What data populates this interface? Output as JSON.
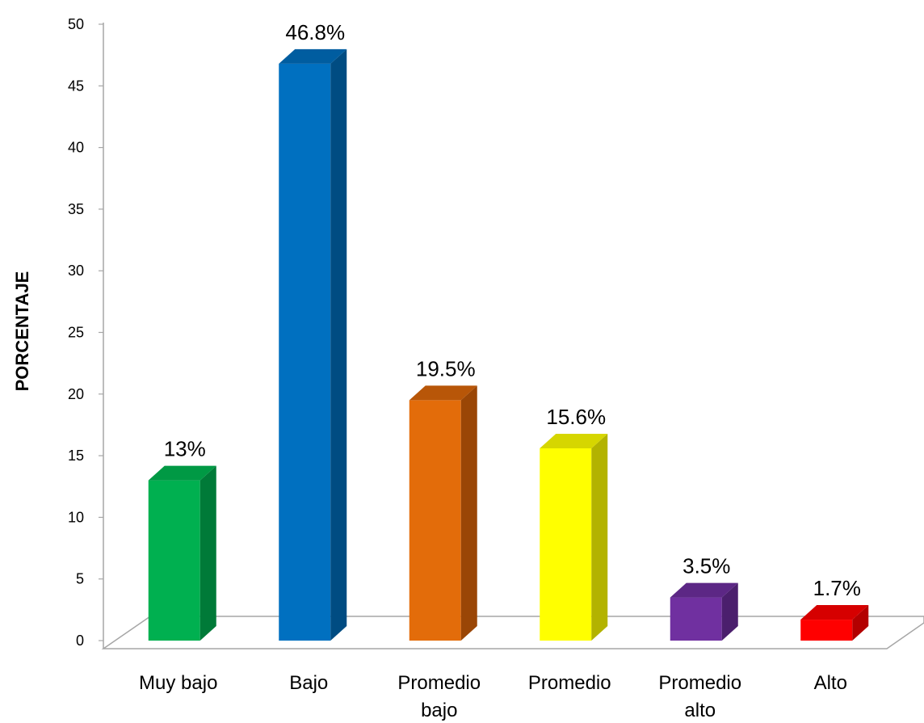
{
  "chart_data": {
    "type": "bar",
    "style": "3d-column",
    "ylabel": "PORCENTAJE",
    "ylim": [
      0,
      50
    ],
    "yticks": [
      0,
      5,
      10,
      15,
      20,
      25,
      30,
      35,
      40,
      45,
      50
    ],
    "grid": false,
    "legend": "none",
    "categories": [
      [
        "Muy bajo"
      ],
      [
        "Bajo"
      ],
      [
        "Promedio",
        "bajo"
      ],
      [
        "Promedio"
      ],
      [
        "Promedio",
        "alto"
      ],
      [
        "Alto"
      ]
    ],
    "values": [
      13,
      46.8,
      19.5,
      15.6,
      3.5,
      1.7
    ],
    "data_labels": [
      "13%",
      "46.8%",
      "19.5%",
      "15.6%",
      "3.5%",
      "1.7%"
    ],
    "colors": [
      {
        "front": "#00B050",
        "side": "#007A38",
        "top": "#009944"
      },
      {
        "front": "#0070C0",
        "side": "#004C82",
        "top": "#005DA0"
      },
      {
        "front": "#E36C0A",
        "side": "#9A4606",
        "top": "#B85608"
      },
      {
        "front": "#FFFF00",
        "side": "#B3B300",
        "top": "#D6D600"
      },
      {
        "front": "#7030A0",
        "side": "#4B1F6D",
        "top": "#5C2785"
      },
      {
        "front": "#FF0000",
        "side": "#B30000",
        "top": "#D60000"
      }
    ]
  }
}
